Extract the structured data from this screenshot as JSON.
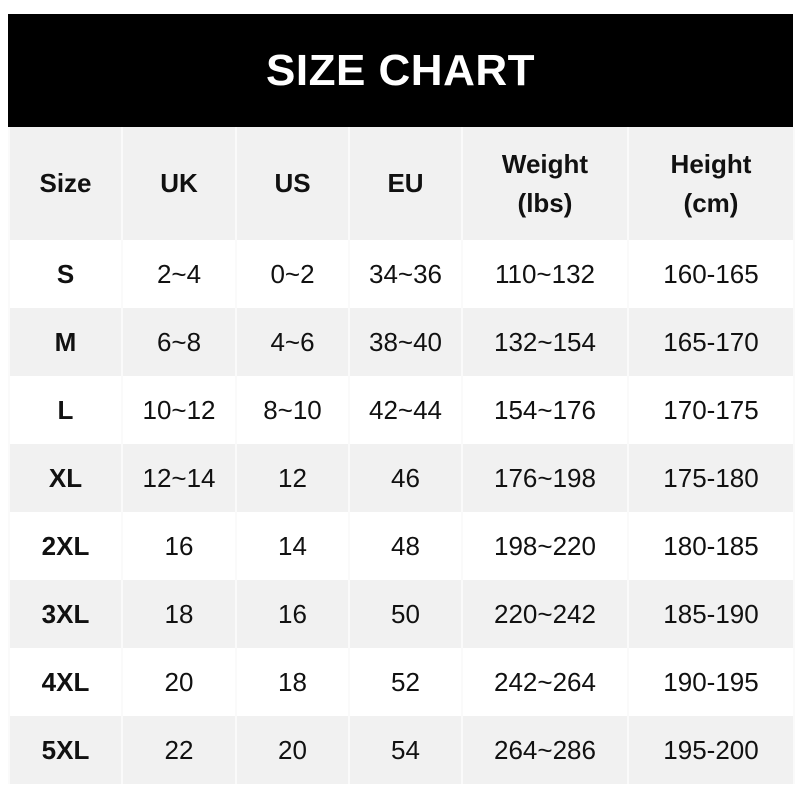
{
  "title": "SIZE CHART",
  "headers": [
    "Size",
    "UK",
    "US",
    "EU",
    "Weight\n(lbs)",
    "Height\n(cm)"
  ],
  "header_lines": {
    "weight": [
      "Weight",
      "(lbs)"
    ],
    "height": [
      "Height",
      "(cm)"
    ]
  },
  "rows": [
    [
      "S",
      "2~4",
      "0~2",
      "34~36",
      "110~132",
      "160-165"
    ],
    [
      "M",
      "6~8",
      "4~6",
      "38~40",
      "132~154",
      "165-170"
    ],
    [
      "L",
      "10~12",
      "8~10",
      "42~44",
      "154~176",
      "170-175"
    ],
    [
      "XL",
      "12~14",
      "12",
      "46",
      "176~198",
      "175-180"
    ],
    [
      "2XL",
      "16",
      "14",
      "48",
      "198~220",
      "180-185"
    ],
    [
      "3XL",
      "18",
      "16",
      "50",
      "220~242",
      "185-190"
    ],
    [
      "4XL",
      "20",
      "18",
      "52",
      "242~264",
      "190-195"
    ],
    [
      "5XL",
      "22",
      "20",
      "54",
      "264~286",
      "195-200"
    ]
  ],
  "colors": {
    "title_bg": "#000000",
    "stripe": "#f1f1f1",
    "text": "#111111"
  }
}
